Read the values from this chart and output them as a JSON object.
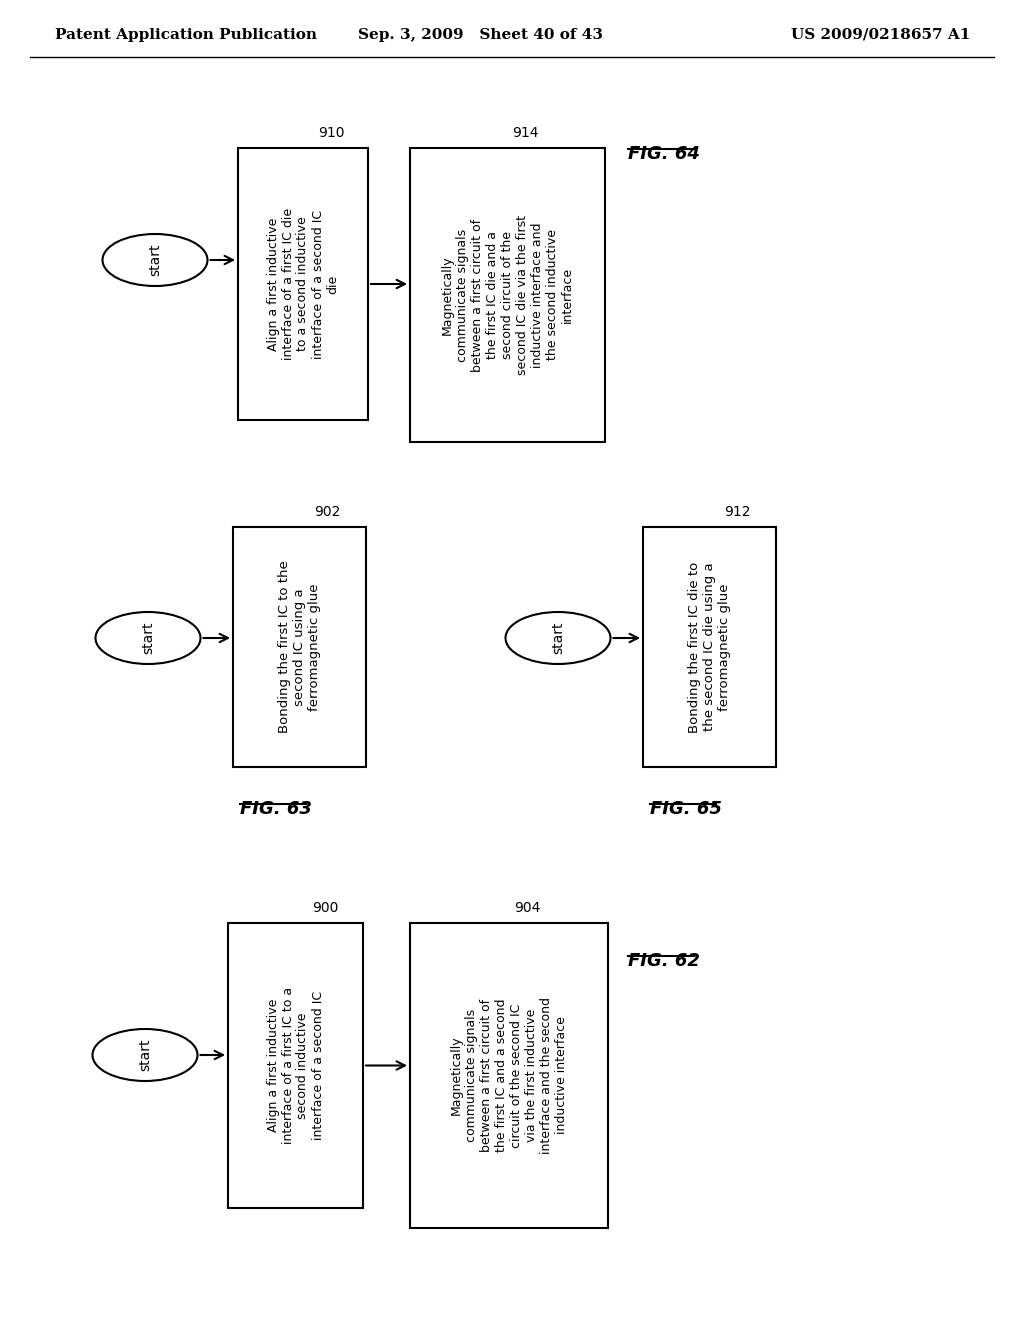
{
  "header_left": "Patent Application Publication",
  "header_mid": "Sep. 3, 2009   Sheet 40 of 43",
  "header_right": "US 2009/0218657 A1",
  "fig64": {
    "label": "FIG. 64",
    "num1": "910",
    "num2": "914",
    "box1_text": "Align a first inductive\ninterface of a first IC die\nto a second inductive\ninterface of a second IC\ndie",
    "box2_text": "Magnetically\ncommunicate signals\nbetween a first circuit of\nthe first IC die and a\nsecond circuit of the\nsecond IC die via the first\ninductive interface and\nthe second inductive\ninterface"
  },
  "fig63": {
    "label": "FIG. 63",
    "num1": "902",
    "box_text": "Bonding the first IC to the\nsecond IC using a\nferromagnetic glue"
  },
  "fig65": {
    "label": "FIG. 65",
    "num1": "912",
    "box_text": "Bonding the first IC die to\nthe second IC die using a\nferromagnetic glue"
  },
  "fig62": {
    "label": "FIG. 62",
    "num1": "900",
    "num2": "904",
    "box1_text": "Align a first inductive\ninterface of a first IC to a\nsecond inductive\ninterface of a second IC",
    "box2_text": "Magnetically\ncommunicate signals\nbetween a first circuit of\nthe first IC and a second\ncircuit of the second IC\nvia the first inductive\ninterface and the second\ninductive interface"
  }
}
